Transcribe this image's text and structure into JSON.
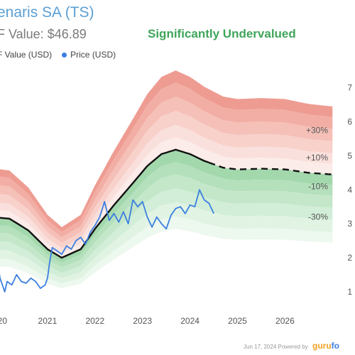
{
  "header": {
    "title": "enaris SA (TS)",
    "dcf_value": "F Value: $46.89",
    "verdict": "Significantly Undervalued",
    "legend_dcf": "F Value (USD)",
    "legend_price": "Price (USD)"
  },
  "footer": {
    "date": "Jun 17, 2024",
    "powered": "Powered by",
    "brand": "guru",
    "brand2": "fo"
  },
  "colors": {
    "price": "#3a7fe0",
    "dcf": "#111111",
    "over": "#e8857a",
    "under": "#7cc48c"
  },
  "chart_data": {
    "type": "line",
    "title": "enaris SA (TS)",
    "xlabel": "",
    "ylabel": "",
    "x_ticks": [
      "020",
      "2021",
      "2022",
      "2023",
      "2024",
      "2025",
      "2026"
    ],
    "y_ticks": [
      "1",
      "2",
      "3",
      "4",
      "5",
      "6",
      "7"
    ],
    "xlim": [
      2020.0,
      2027.1
    ],
    "ylim": [
      0.6,
      7.6
    ],
    "band_labels": [
      "30%",
      "10%",
      "-10%",
      "-30%"
    ],
    "dcf_value_series": {
      "name": "F Value (USD)",
      "x": [
        2019.8,
        2020.2,
        2020.6,
        2021.0,
        2021.3,
        2021.7,
        2022.0,
        2022.4,
        2022.8,
        2023.1,
        2023.4,
        2023.7,
        2024.0,
        2024.3,
        2024.7,
        2025.0,
        2025.5,
        2026.0,
        2026.5,
        2027.0
      ],
      "y": [
        3.2,
        3.15,
        2.8,
        2.25,
        2.0,
        2.25,
        2.85,
        3.55,
        4.2,
        4.7,
        5.05,
        5.18,
        5.05,
        4.85,
        4.65,
        4.6,
        4.62,
        4.6,
        4.5,
        4.45
      ],
      "projected_from": 2024.4
    },
    "price_series": {
      "name": "Price (USD)",
      "x": [
        2019.8,
        2019.9,
        2020.0,
        2020.1,
        2020.15,
        2020.25,
        2020.35,
        2020.45,
        2020.55,
        2020.65,
        2020.75,
        2020.85,
        2020.95,
        2021.0,
        2021.05,
        2021.1,
        2021.2,
        2021.3,
        2021.4,
        2021.5,
        2021.6,
        2021.7,
        2021.8,
        2021.9,
        2022.0,
        2022.1,
        2022.2,
        2022.3,
        2022.4,
        2022.5,
        2022.6,
        2022.7,
        2022.8,
        2022.9,
        2023.0,
        2023.1,
        2023.2,
        2023.3,
        2023.4,
        2023.5,
        2023.6,
        2023.7,
        2023.8,
        2023.9,
        2024.0,
        2024.1,
        2024.2,
        2024.3,
        2024.4,
        2024.5
      ],
      "y": [
        2.6,
        2.4,
        1.4,
        1.0,
        1.3,
        1.2,
        1.5,
        1.3,
        1.25,
        1.4,
        1.3,
        1.1,
        1.2,
        1.4,
        1.9,
        2.3,
        2.2,
        2.1,
        2.35,
        2.25,
        2.5,
        2.6,
        2.4,
        2.75,
        2.95,
        3.2,
        3.65,
        3.1,
        3.3,
        3.05,
        3.35,
        3.0,
        3.7,
        3.5,
        3.65,
        3.2,
        2.9,
        3.2,
        3.0,
        2.85,
        3.25,
        3.45,
        3.5,
        3.3,
        3.55,
        3.5,
        4.0,
        3.7,
        3.6,
        3.3
      ]
    },
    "legend": "top-left",
    "grid": false
  }
}
